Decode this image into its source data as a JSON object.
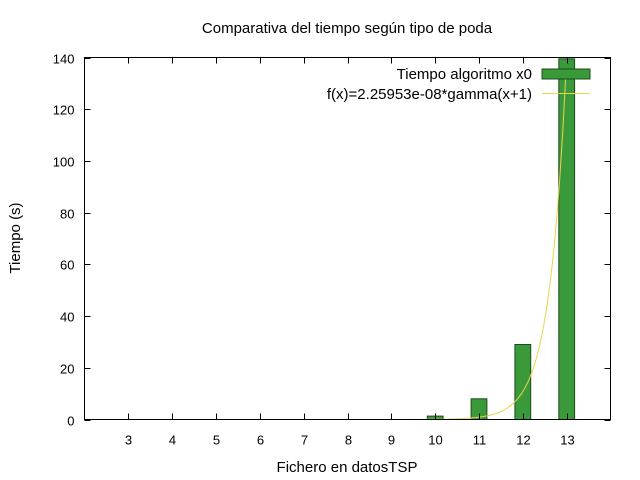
{
  "chart_data": {
    "type": "bar",
    "title": "Comparativa del tiempo según tipo de poda",
    "xlabel": "Fichero en datosTSP",
    "ylabel": "Tiempo (s)",
    "categories": [
      "3",
      "4",
      "5",
      "6",
      "7",
      "8",
      "9",
      "10",
      "11",
      "12",
      "13"
    ],
    "series": [
      {
        "name": "Tiempo algoritmo x0",
        "values": [
          0,
          0,
          0,
          0,
          0,
          0,
          0,
          1.3,
          8,
          29,
          139.5
        ],
        "color": "#3a9a3a",
        "type": "bar"
      },
      {
        "name": "f(x)=2.25953e-08*gamma(x+1)",
        "color": "#e8d44d",
        "type": "line"
      }
    ],
    "xlim": [
      2,
      14
    ],
    "ylim": [
      0,
      140
    ],
    "yticks": [
      0,
      20,
      40,
      60,
      80,
      100,
      120,
      140
    ],
    "grid": false,
    "legend_position": "top-right"
  }
}
